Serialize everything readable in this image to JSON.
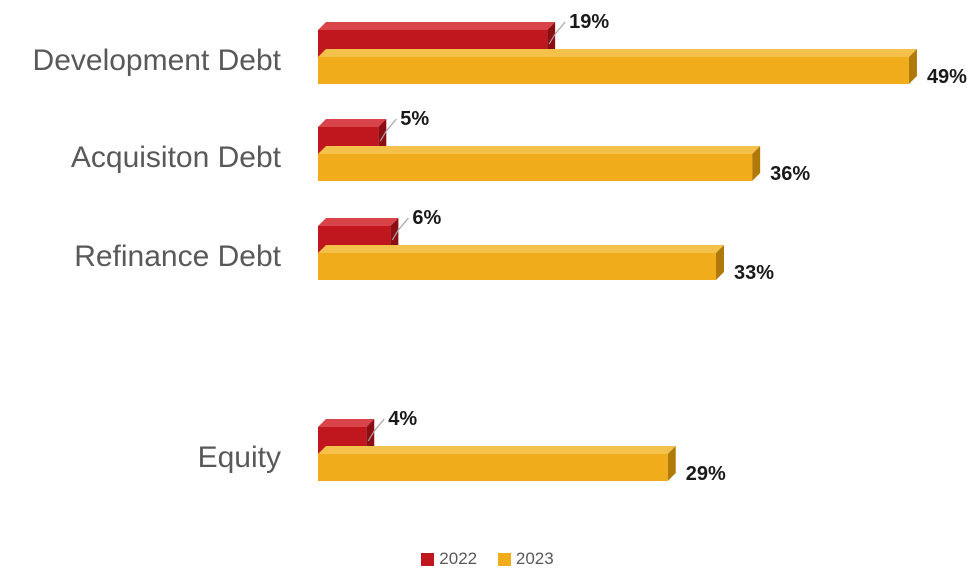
{
  "chart_data": {
    "type": "bar",
    "orientation": "horizontal",
    "style": "3d",
    "categories": [
      "Development Debt",
      "Acquisiton Debt",
      "Refinance Debt",
      "Equity"
    ],
    "series": [
      {
        "name": "2022",
        "values": [
          19,
          5,
          6,
          4
        ],
        "labels": [
          "19%",
          "5%",
          "6%",
          "4%"
        ],
        "color": "#c0161d"
      },
      {
        "name": "2023",
        "values": [
          49,
          36,
          33,
          29
        ],
        "labels": [
          "49%",
          "36%",
          "33%",
          "29%"
        ],
        "color": "#f0ac1b"
      }
    ],
    "xlim": [
      0,
      50
    ],
    "legend_position": "bottom",
    "grid": false
  }
}
